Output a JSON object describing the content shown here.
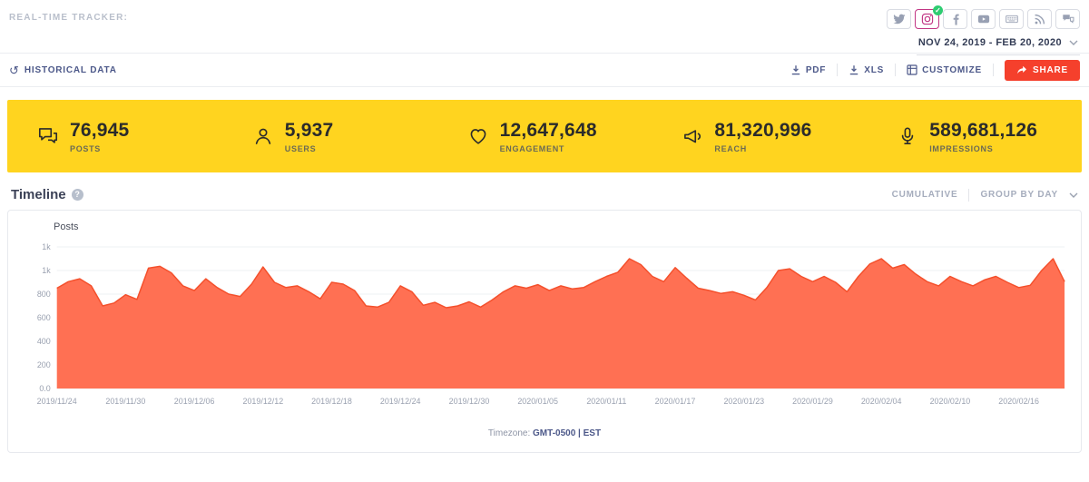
{
  "header": {
    "tracker_label": "REAL-TIME TRACKER:",
    "date_range": "NOV 24, 2019 - FEB 20, 2020",
    "networks": [
      "twitter",
      "instagram",
      "facebook",
      "youtube",
      "keyboard",
      "rss",
      "comments"
    ],
    "active_network": "instagram"
  },
  "toolbar": {
    "historical_data_label": "HISTORICAL DATA",
    "pdf_label": "PDF",
    "xls_label": "XLS",
    "customize_label": "CUSTOMIZE",
    "share_label": "SHARE"
  },
  "stats": [
    {
      "value": "76,945",
      "label": "POSTS",
      "icon": "comments-icon"
    },
    {
      "value": "5,937",
      "label": "USERS",
      "icon": "user-icon"
    },
    {
      "value": "12,647,648",
      "label": "ENGAGEMENT",
      "icon": "heart-icon"
    },
    {
      "value": "81,320,996",
      "label": "REACH",
      "icon": "megaphone-icon"
    },
    {
      "value": "589,681,126",
      "label": "IMPRESSIONS",
      "icon": "microphone-icon"
    }
  ],
  "timeline": {
    "title": "Timeline",
    "cumulative_label": "CUMULATIVE",
    "group_by_label": "GROUP BY DAY",
    "posts_axis_label": "Posts",
    "timezone_prefix": "Timezone:",
    "timezone_value": "GMT-0500 | EST"
  },
  "colors": {
    "accent": "#4c5889",
    "yellow": "#ffd41f",
    "share_red": "#f5402c",
    "check_green": "#2ecc71",
    "instagram_pink": "#c13584"
  },
  "chart_data": {
    "type": "area",
    "title": "Timeline",
    "ylabel": "Posts",
    "ylim": [
      0,
      1200
    ],
    "y_tick_step": 200,
    "y_tick_labels": [
      "0.0",
      "200",
      "400",
      "600",
      "800",
      "1k",
      "1k"
    ],
    "x_start": "2019/11/24",
    "x_end": "2020/02/20",
    "x_tick_every": 6,
    "x_tick_labels": [
      "2019/11/24",
      "2019/11/30",
      "2019/12/06",
      "2019/12/12",
      "2019/12/18",
      "2019/12/24",
      "2019/12/30",
      "2020/01/05",
      "2020/01/11",
      "2020/01/17",
      "2020/01/23",
      "2020/01/29",
      "2020/02/04",
      "2020/02/10",
      "2020/02/16"
    ],
    "values": [
      850,
      905,
      930,
      870,
      700,
      725,
      795,
      755,
      1020,
      1035,
      980,
      870,
      830,
      930,
      855,
      800,
      780,
      885,
      1030,
      900,
      855,
      870,
      820,
      760,
      900,
      885,
      830,
      700,
      690,
      730,
      870,
      820,
      705,
      730,
      685,
      700,
      735,
      690,
      750,
      820,
      870,
      850,
      880,
      830,
      870,
      845,
      855,
      905,
      950,
      985,
      1100,
      1050,
      950,
      905,
      1025,
      935,
      850,
      830,
      805,
      820,
      790,
      750,
      855,
      1000,
      1015,
      950,
      905,
      950,
      900,
      820,
      950,
      1055,
      1100,
      1020,
      1050,
      970,
      905,
      870,
      950,
      905,
      870,
      920,
      950,
      900,
      855,
      875,
      1000,
      1100,
      905
    ],
    "fill_color": "#ff7053",
    "line_color": "#f4502c",
    "grid": true,
    "legend": false
  }
}
